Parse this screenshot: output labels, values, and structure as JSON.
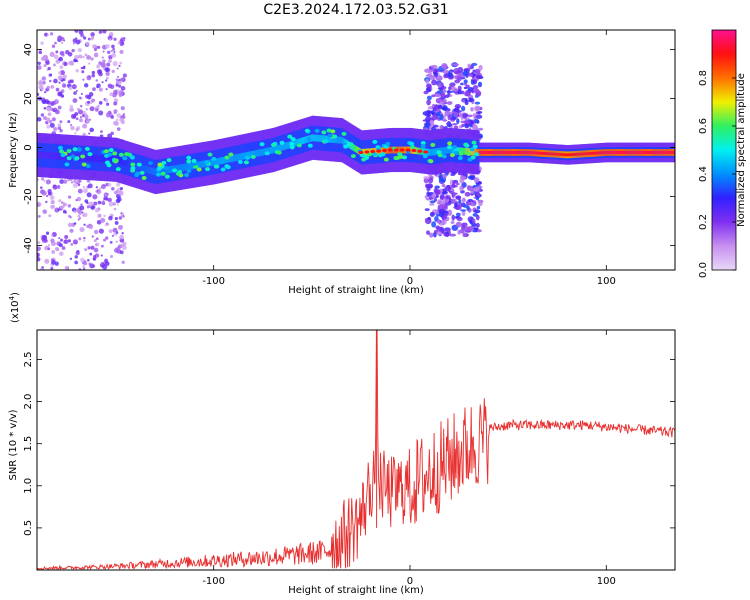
{
  "figure_title": "C2E3.2024.172.03.52.G31",
  "chart_data": [
    {
      "type": "heatmap",
      "title": "",
      "xlabel": "Height of straight line (km)",
      "ylabel": "Frequency (Hz)",
      "xlim": [
        -190,
        135
      ],
      "ylim": [
        -50,
        48
      ],
      "x_ticks": [
        -100,
        0,
        100
      ],
      "y_ticks": [
        -40,
        -20,
        0,
        20,
        40
      ],
      "colorbar": {
        "label": "Normalized spectral amplitude",
        "range": [
          0,
          1
        ],
        "ticks": [
          "0.0",
          "0.2",
          "0.4",
          "0.6",
          "0.8"
        ],
        "colors": [
          "#e8d8f8",
          "#c890f0",
          "#8030f0",
          "#3020ff",
          "#0090ff",
          "#00f0f0",
          "#30f060",
          "#f0f000",
          "#ff7000",
          "#ff1010",
          "#ff1090"
        ]
      },
      "trend": {
        "x": [
          -190,
          -150,
          -130,
          -100,
          -70,
          -50,
          -35,
          -25,
          -10,
          0,
          10,
          20,
          35,
          60,
          80,
          100,
          135
        ],
        "freq_hz": [
          -3,
          -5,
          -10,
          -6,
          -1,
          4,
          3,
          -2,
          -1,
          -1,
          -2,
          -1,
          -2,
          -2,
          -3,
          -2,
          -2
        ],
        "peak_amplitude": [
          0.3,
          0.35,
          0.45,
          0.5,
          0.5,
          0.55,
          0.5,
          0.8,
          0.95,
          0.9,
          0.5,
          0.5,
          0.95,
          0.95,
          0.9,
          0.95,
          0.95
        ]
      }
    },
    {
      "type": "line",
      "title": "",
      "xlabel": "Height of straight line (km)",
      "ylabel": "SNR (10 * v/v)",
      "y_scale_note": "(x10",
      "y_scale_exp": "4",
      "y_scale_close": ")",
      "xlim": [
        -190,
        135
      ],
      "ylim": [
        0,
        2.85
      ],
      "x_ticks": [
        -100,
        0,
        100
      ],
      "y_ticks": [
        "0.5",
        "1.0",
        "1.5",
        "2.0",
        "2.5"
      ],
      "color": "#e83030",
      "envelope": {
        "x": [
          -190,
          -160,
          -140,
          -120,
          -100,
          -80,
          -60,
          -45,
          -35,
          -25,
          -20,
          -17,
          -15,
          -10,
          -5,
          0,
          10,
          20,
          30,
          40,
          50,
          70,
          90,
          100,
          120,
          135
        ],
        "y": [
          0.03,
          0.05,
          0.08,
          0.12,
          0.16,
          0.2,
          0.25,
          0.3,
          0.45,
          0.7,
          1.1,
          1.35,
          1.1,
          1.0,
          1.05,
          1.1,
          1.25,
          1.4,
          1.58,
          1.68,
          1.72,
          1.72,
          1.72,
          1.7,
          1.66,
          1.63
        ]
      },
      "spike": {
        "x": -17,
        "y": 2.85
      }
    }
  ]
}
